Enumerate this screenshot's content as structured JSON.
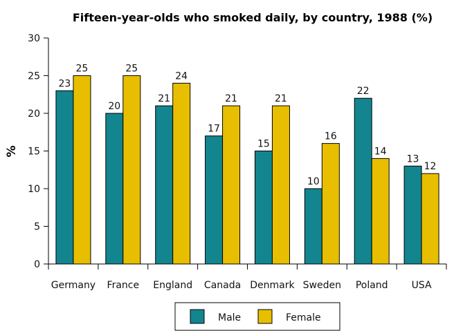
{
  "chart_data": {
    "type": "bar",
    "title": "Fifteen-year-olds who smoked daily, by country, 1988 (%)",
    "ylabel": "%",
    "xlabel": "",
    "ylim": [
      0,
      30
    ],
    "yticks": [
      0,
      5,
      10,
      15,
      20,
      25,
      30
    ],
    "categories": [
      "Germany",
      "France",
      "England",
      "Canada",
      "Denmark",
      "Sweden",
      "Poland",
      "USA"
    ],
    "series": [
      {
        "name": "Male",
        "color": "#12858f",
        "values": [
          23,
          20,
          21,
          17,
          15,
          10,
          22,
          13
        ]
      },
      {
        "name": "Female",
        "color": "#e8bf00",
        "values": [
          25,
          25,
          24,
          21,
          21,
          16,
          14,
          12
        ]
      }
    ],
    "legend": "bottom",
    "grid": false,
    "data_labels": true
  }
}
